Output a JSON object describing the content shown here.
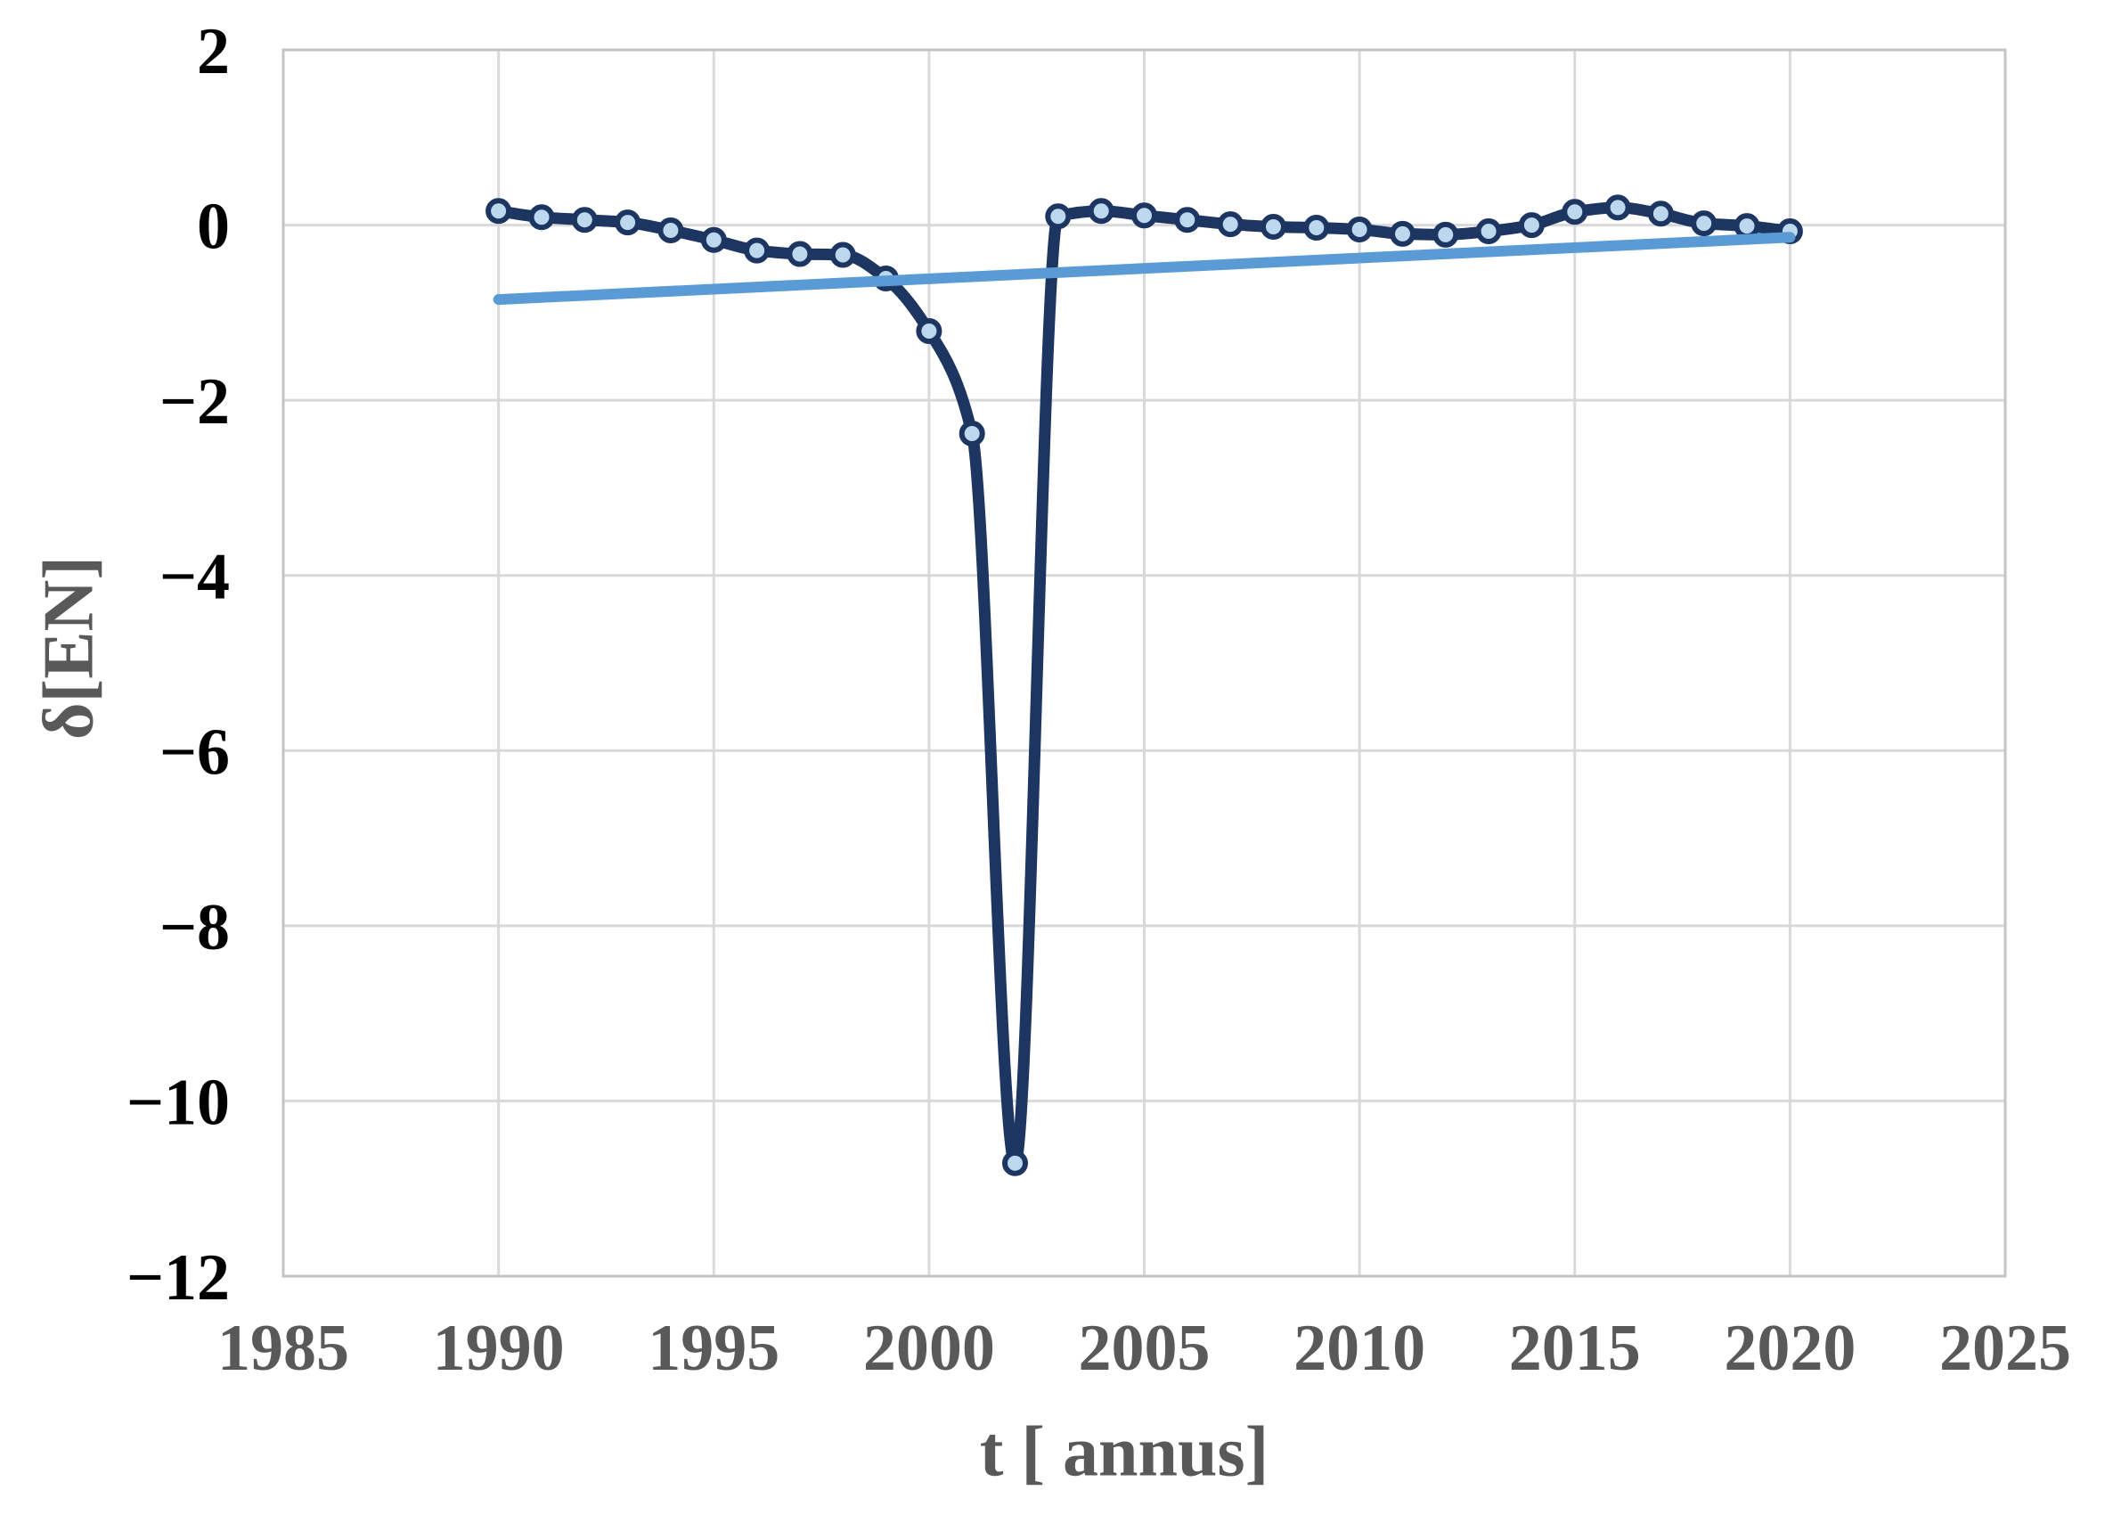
{
  "chart_data": {
    "type": "line",
    "title": "",
    "xlabel": "t [ annus]",
    "ylabel": "δ[EN]",
    "xlim": [
      1985,
      2025
    ],
    "ylim": [
      -12,
      2
    ],
    "grid": true,
    "legend": "none",
    "x_ticks": [
      1985,
      1990,
      1995,
      2000,
      2005,
      2010,
      2015,
      2020,
      2025
    ],
    "x_tick_labels": [
      "1985",
      "1990",
      "1995",
      "2000",
      "2005",
      "2010",
      "2015",
      "2020",
      "2025"
    ],
    "y_ticks": [
      2,
      0,
      -2,
      -4,
      -6,
      -8,
      -10,
      -12
    ],
    "y_tick_labels": [
      "2",
      "0",
      "−2",
      "−4",
      "−6",
      "−8",
      "−10",
      "−12"
    ],
    "series": [
      {
        "name": "delta-EN-yearly",
        "style": "smooth_line_with_markers",
        "line_color": "#1C3661",
        "marker_fill": "#BDD7EE",
        "marker_outline": "#1C3661",
        "x": [
          1990,
          1991,
          1992,
          1993,
          1994,
          1995,
          1996,
          1997,
          1998,
          1999,
          2000,
          2001,
          2002,
          2003,
          2004,
          2005,
          2006,
          2007,
          2008,
          2009,
          2010,
          2011,
          2012,
          2013,
          2014,
          2015,
          2016,
          2017,
          2018,
          2019,
          2020
        ],
        "y": [
          0.16,
          0.09,
          0.06,
          0.03,
          -0.06,
          -0.17,
          -0.29,
          -0.33,
          -0.34,
          -0.61,
          -1.21,
          -2.38,
          -10.71,
          0.1,
          0.16,
          0.11,
          0.06,
          0.01,
          -0.02,
          -0.03,
          -0.05,
          -0.1,
          -0.11,
          -0.07,
          0.0,
          0.15,
          0.2,
          0.13,
          0.02,
          -0.01,
          -0.07
        ]
      },
      {
        "name": "linear-trend",
        "style": "straight_line",
        "line_color": "#5B9BD5",
        "x": [
          1990,
          2020
        ],
        "y": [
          -0.85,
          -0.14
        ]
      }
    ]
  },
  "colors": {
    "background": "#FFFFFF",
    "plot_border": "#C4C4C4",
    "gridline": "#D9D9D9",
    "y_tick_label": "#000000",
    "x_tick_label": "#595959",
    "axis_title": "#595959"
  }
}
